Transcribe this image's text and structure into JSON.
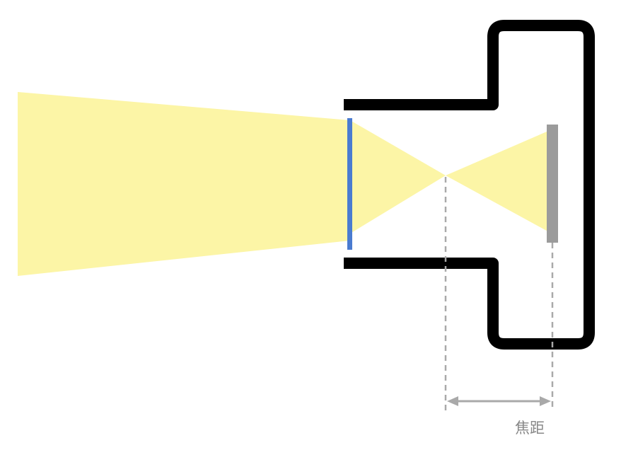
{
  "diagram": {
    "focal_length_label": "焦距"
  },
  "colors": {
    "light_beam": "#FCF5A6",
    "camera_body": "#000000",
    "lens": "#4A7BD0",
    "sensor": "#9B9B9B",
    "guide_lines": "#A9A9A9",
    "label_text": "#888888"
  }
}
